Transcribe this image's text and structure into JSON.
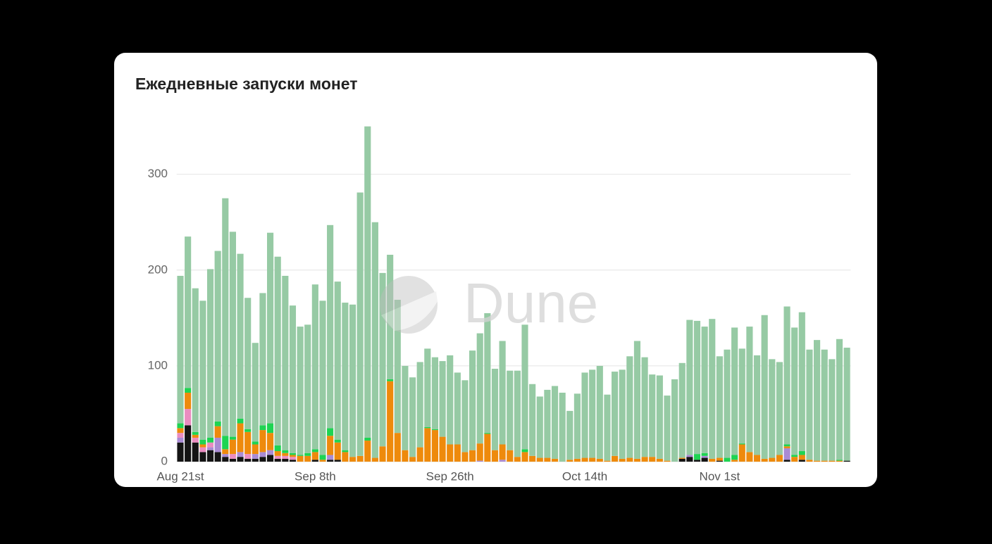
{
  "chart_data": {
    "type": "stacked-bar",
    "title": "Ежедневные запуски монет",
    "watermark": "Dune",
    "categories": [
      "Aug 21st",
      null,
      null,
      null,
      null,
      null,
      null,
      null,
      null,
      null,
      null,
      null,
      null,
      null,
      null,
      null,
      null,
      null,
      "Sep 8th",
      null,
      null,
      null,
      null,
      null,
      null,
      null,
      null,
      null,
      null,
      null,
      null,
      null,
      null,
      null,
      null,
      null,
      "Sep 26th",
      null,
      null,
      null,
      null,
      null,
      null,
      null,
      null,
      null,
      null,
      null,
      null,
      null,
      null,
      null,
      null,
      null,
      "Oct 14th",
      null,
      null,
      null,
      null,
      null,
      null,
      null,
      null,
      null,
      null,
      null,
      null,
      null,
      null,
      null,
      null,
      null,
      "Nov 1st",
      null,
      null,
      null,
      null,
      null,
      null,
      null,
      null,
      null,
      null,
      null,
      null,
      null,
      null,
      null,
      null,
      null
    ],
    "series": [
      {
        "color": "#141414",
        "values": [
          20,
          38,
          20,
          10,
          12,
          10,
          5,
          3,
          5,
          3,
          3,
          5,
          7,
          3,
          3,
          2,
          0,
          0,
          2,
          0,
          2,
          2,
          0,
          0,
          0,
          0,
          0,
          0,
          0,
          0,
          0,
          0,
          0,
          0,
          0,
          0,
          0,
          0,
          0,
          0,
          0,
          0,
          0,
          0,
          0,
          0,
          0,
          0,
          0,
          0,
          0,
          0,
          0,
          0,
          0,
          0,
          0,
          0,
          0,
          0,
          0,
          0,
          0,
          0,
          0,
          0,
          0,
          3,
          5,
          2,
          4,
          0,
          1,
          0,
          0,
          0,
          0,
          0,
          0,
          0,
          0,
          2,
          0,
          2,
          0,
          0,
          0,
          0,
          0,
          1
        ]
      },
      {
        "color": "#a98bd4",
        "values": [
          5,
          0,
          0,
          0,
          3,
          15,
          3,
          0,
          5,
          0,
          5,
          5,
          5,
          0,
          0,
          0,
          0,
          0,
          0,
          0,
          5,
          0,
          0,
          0,
          0,
          0,
          0,
          0,
          0,
          0,
          0,
          0,
          0,
          0,
          0,
          0,
          0,
          0,
          0,
          0,
          1,
          0,
          0,
          2,
          0,
          0,
          0,
          0,
          0,
          0,
          0,
          0,
          0,
          0,
          0,
          0,
          0,
          0,
          0,
          0,
          0,
          0,
          0,
          0,
          0,
          0,
          0,
          0,
          2,
          0,
          2,
          0,
          0,
          0,
          0,
          0,
          0,
          0,
          0,
          0,
          0,
          12,
          0,
          0,
          0,
          0,
          0,
          0,
          0,
          0
        ]
      },
      {
        "color": "#ea8cc0",
        "values": [
          5,
          17,
          5,
          5,
          5,
          0,
          0,
          5,
          0,
          5,
          0,
          0,
          0,
          3,
          3,
          3,
          0,
          0,
          0,
          0,
          0,
          0,
          0,
          0,
          0,
          0,
          0,
          0,
          0,
          0,
          0,
          0,
          0,
          0,
          0,
          0,
          0,
          0,
          0,
          0,
          0,
          0,
          0,
          0,
          0,
          0,
          0,
          0,
          0,
          0,
          0,
          0,
          0,
          0,
          0,
          0,
          0,
          0,
          0,
          0,
          0,
          0,
          0,
          0,
          0,
          0,
          0,
          0,
          0,
          0,
          0,
          0,
          0,
          0,
          0,
          0,
          0,
          0,
          0,
          0,
          0,
          0,
          0,
          0,
          0,
          0,
          0,
          0,
          0,
          0
        ]
      },
      {
        "color": "#ee8a0c",
        "values": [
          5,
          17,
          3,
          3,
          0,
          12,
          5,
          15,
          30,
          23,
          10,
          23,
          18,
          5,
          3,
          2,
          6,
          6,
          8,
          2,
          20,
          18,
          10,
          5,
          6,
          22,
          4,
          16,
          84,
          30,
          12,
          5,
          15,
          35,
          33,
          26,
          18,
          18,
          10,
          12,
          18,
          29,
          12,
          16,
          12,
          5,
          10,
          6,
          4,
          4,
          3,
          0,
          2,
          3,
          4,
          4,
          3,
          1,
          6,
          3,
          4,
          3,
          5,
          5,
          3,
          1,
          0,
          1,
          0,
          0,
          0,
          3,
          3,
          0,
          2,
          18,
          10,
          7,
          3,
          4,
          7,
          2,
          5,
          5,
          2,
          1,
          1,
          1,
          1,
          0
        ]
      },
      {
        "color": "#1ed452",
        "values": [
          5,
          5,
          3,
          5,
          5,
          5,
          14,
          3,
          5,
          3,
          3,
          5,
          10,
          6,
          3,
          2,
          1,
          3,
          3,
          5,
          8,
          3,
          2,
          0,
          0,
          3,
          0,
          0,
          2,
          0,
          0,
          0,
          0,
          1,
          1,
          0,
          0,
          0,
          0,
          0,
          0,
          1,
          0,
          0,
          0,
          0,
          3,
          0,
          0,
          0,
          0,
          0,
          0,
          0,
          0,
          0,
          0,
          0,
          0,
          0,
          0,
          0,
          0,
          0,
          0,
          0,
          0,
          0,
          0,
          6,
          3,
          0,
          0,
          4,
          5,
          1,
          0,
          0,
          0,
          0,
          0,
          2,
          2,
          4,
          0,
          0,
          0,
          0,
          1,
          0
        ]
      },
      {
        "color": "#96caa4",
        "values": [
          154,
          158,
          150,
          145,
          176,
          178,
          248,
          214,
          172,
          137,
          103,
          138,
          199,
          197,
          182,
          154,
          134,
          134,
          172,
          161,
          212,
          165,
          154,
          159,
          275,
          325,
          246,
          181,
          130,
          139,
          88,
          83,
          89,
          82,
          75,
          79,
          93,
          75,
          75,
          104,
          115,
          125,
          85,
          108,
          83,
          90,
          130,
          75,
          64,
          71,
          76,
          72,
          51,
          68,
          89,
          92,
          97,
          69,
          88,
          93,
          106,
          123,
          104,
          86,
          87,
          68,
          86,
          99,
          141,
          139,
          132,
          146,
          106,
          113,
          133,
          99,
          131,
          104,
          150,
          103,
          97,
          144,
          133,
          145,
          115,
          126,
          116,
          106,
          126,
          118
        ]
      }
    ],
    "ylim": [
      0,
      360
    ],
    "yticks": [
      0,
      100,
      200,
      300
    ],
    "grid": true
  }
}
